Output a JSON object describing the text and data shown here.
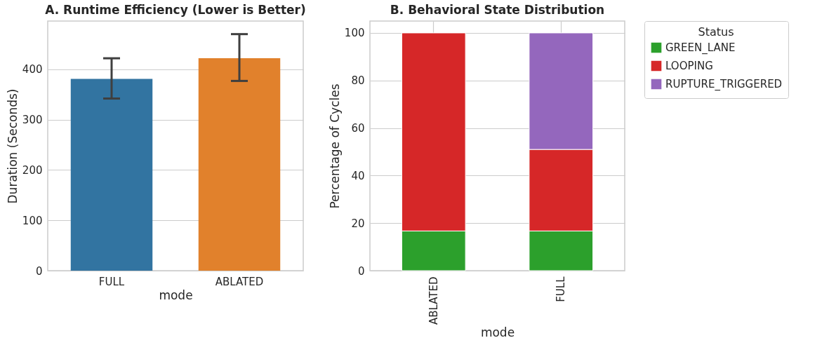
{
  "chart_data": [
    {
      "type": "bar",
      "title": "A. Runtime Efficiency (Lower is Better)",
      "xlabel": "mode",
      "ylabel": "Duration (Seconds)",
      "categories": [
        "FULL",
        "ABLATED"
      ],
      "values": [
        381,
        422
      ],
      "colors": [
        "#3274a1",
        "#e1812c"
      ],
      "errors": [
        [
          342,
          422
        ],
        [
          377,
          470
        ]
      ],
      "ylim": [
        0,
        496
      ],
      "yticks": [
        0,
        100,
        200,
        300,
        400
      ],
      "grid": "y"
    },
    {
      "type": "bar",
      "stacked": true,
      "title": "B. Behavioral State Distribution",
      "xlabel": "mode",
      "ylabel": "Percentage of Cycles",
      "legend_title": "Status",
      "legend": "top right",
      "categories": [
        "ABLATED",
        "FULL"
      ],
      "series": [
        {
          "name": "GREEN_LANE",
          "color": "#2ca02c",
          "values": [
            16.7,
            16.7
          ]
        },
        {
          "name": "LOOPING",
          "color": "#d62728",
          "values": [
            83.3,
            34.3
          ]
        },
        {
          "name": "RUPTURE_TRIGGERED",
          "color": "#9467bd",
          "values": [
            null,
            49
          ]
        }
      ],
      "ylim": [
        0,
        105
      ],
      "yticks": [
        0,
        20,
        40,
        60,
        80,
        100
      ],
      "grid": true
    }
  ]
}
